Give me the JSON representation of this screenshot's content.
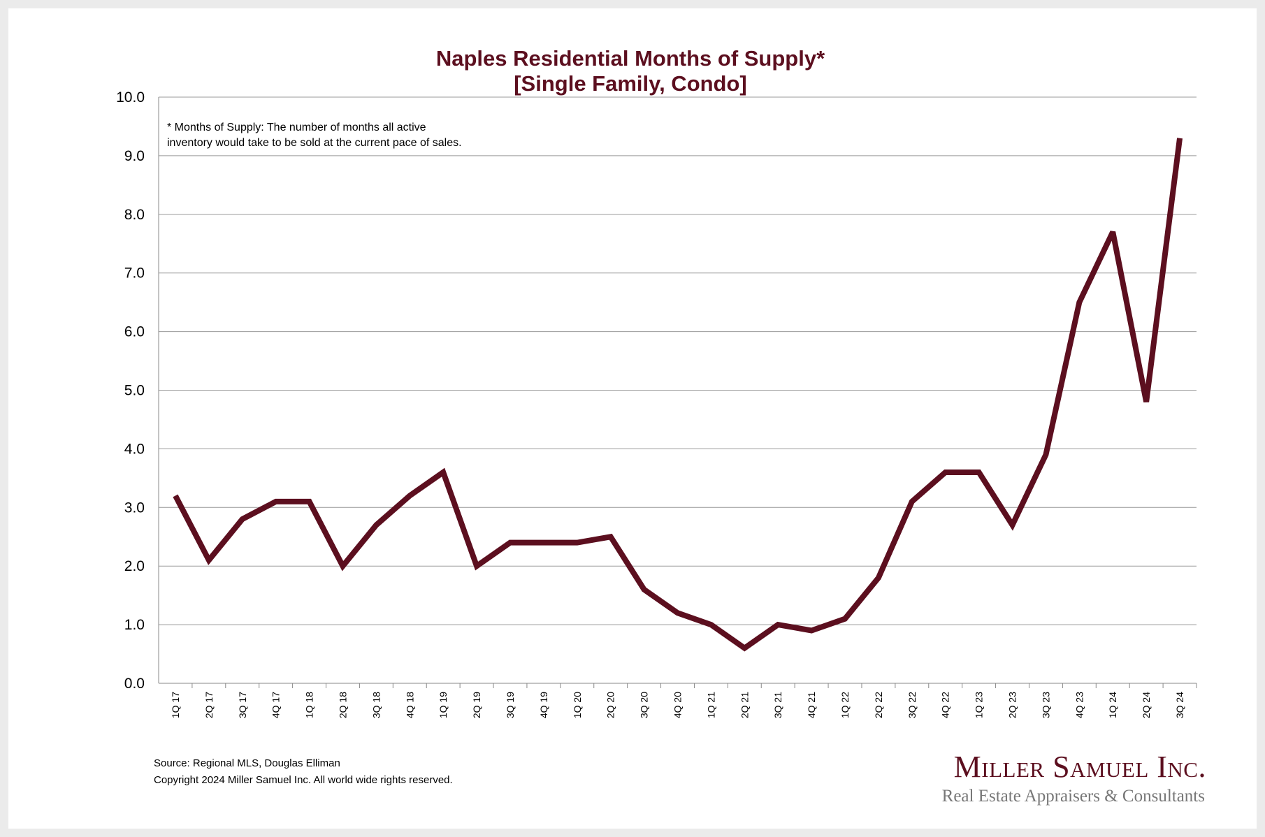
{
  "chart_data": {
    "type": "line",
    "title": "Naples Residential Months of Supply*",
    "subtitle": "[Single Family, Condo]",
    "xlabel": "",
    "ylabel": "",
    "ylim": [
      0,
      10
    ],
    "yticks": [
      "0.0",
      "1.0",
      "2.0",
      "3.0",
      "4.0",
      "5.0",
      "6.0",
      "7.0",
      "8.0",
      "9.0",
      "10.0"
    ],
    "grid": true,
    "categories": [
      "1Q 17",
      "2Q 17",
      "3Q 17",
      "4Q 17",
      "1Q 18",
      "2Q 18",
      "3Q 18",
      "4Q 18",
      "1Q 19",
      "2Q 19",
      "3Q 19",
      "4Q 19",
      "1Q 20",
      "2Q 20",
      "3Q 20",
      "4Q 20",
      "1Q 21",
      "2Q 21",
      "3Q 21",
      "4Q 21",
      "1Q 22",
      "2Q 22",
      "3Q 22",
      "4Q 22",
      "1Q 23",
      "2Q 23",
      "3Q 23",
      "4Q 23",
      "1Q 24",
      "2Q 24",
      "3Q 24"
    ],
    "series": [
      {
        "name": "Months of Supply",
        "color": "#5c0f1f",
        "values": [
          3.2,
          2.1,
          2.8,
          3.1,
          3.1,
          2.0,
          2.7,
          3.2,
          3.6,
          2.0,
          2.4,
          2.4,
          2.4,
          2.5,
          1.6,
          1.2,
          1.0,
          0.6,
          1.0,
          0.9,
          1.1,
          1.8,
          3.1,
          3.6,
          3.6,
          2.7,
          3.9,
          6.5,
          7.7,
          4.8,
          9.3
        ]
      }
    ],
    "annotation_lines": [
      "* Months of Supply: The number of months all active",
      "inventory would take to be sold at the current pace of sales."
    ]
  },
  "footer": {
    "source": "Source: Regional MLS, Douglas Elliman",
    "copyright": "Copyright 2024 Miller Samuel Inc.  All world wide rights reserved."
  },
  "logo": {
    "name": "Miller Samuel Inc.",
    "tagline": "Real Estate Appraisers & Consultants"
  }
}
